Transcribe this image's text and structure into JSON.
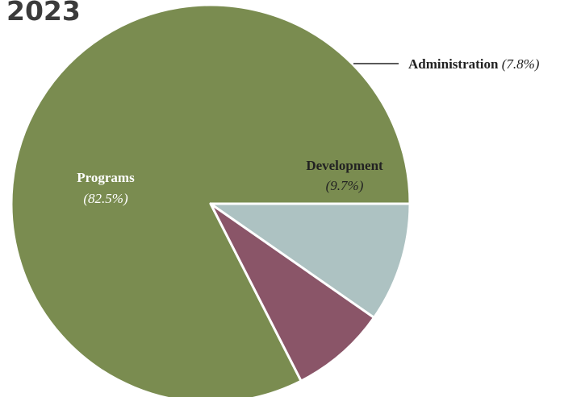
{
  "chart_data": {
    "type": "pie",
    "title": "2023",
    "slices": [
      {
        "label": "Programs",
        "value": 82.5,
        "value_label": "(82.5%)",
        "color": "#7a8c50",
        "label_color": "#ffffff"
      },
      {
        "label": "Administration",
        "value": 7.8,
        "value_label": "(7.8%)",
        "color": "#8a5568",
        "label_color": "#222222"
      },
      {
        "label": "Development",
        "value": 9.7,
        "value_label": "(9.7%)",
        "color": "#adc2c2",
        "label_color": "#222222"
      }
    ]
  }
}
